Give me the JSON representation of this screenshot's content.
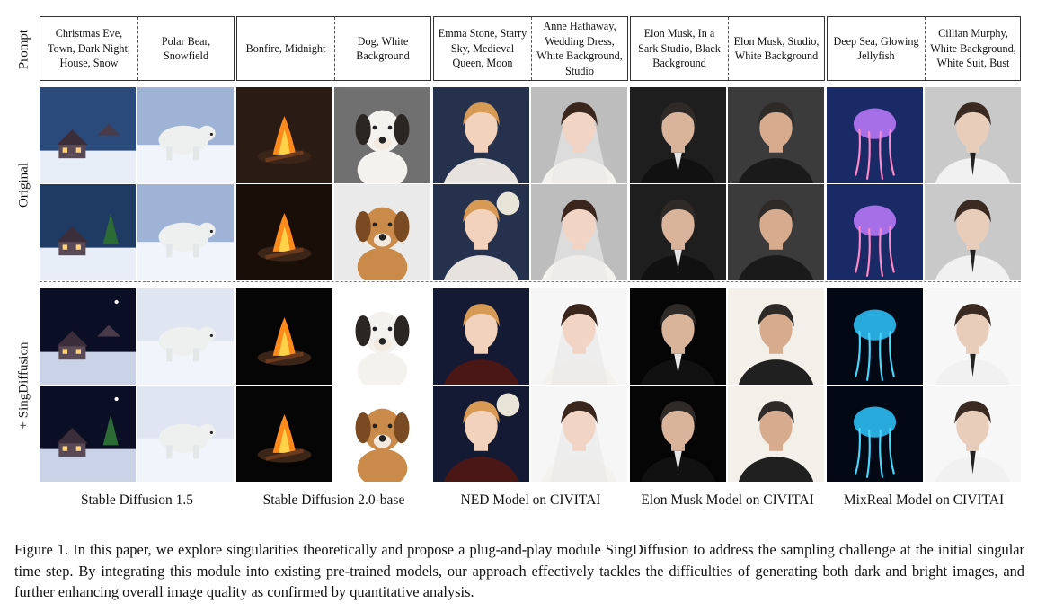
{
  "row_labels": {
    "prompt": "Prompt",
    "original": "Original",
    "sing": "+ SingDiffusion"
  },
  "prompts": [
    "Christmas Eve, Town, Dark Night, House, Snow",
    "Polar Bear, Snowfield",
    "Bonfire, Midnight",
    "Dog, White Background",
    "Emma Stone, Starry Sky, Medieval Queen, Moon",
    "Anne Hathaway, Wedding Dress, White Background, Studio",
    "Elon Musk, In a Sark Studio, Black Background",
    "Elon Musk, Studio, White Background",
    "Deep Sea, Glowing Jellyfish",
    "Cillian Murphy, White Background, White Suit, Bust"
  ],
  "models": [
    "Stable Diffusion  1.5",
    "Stable Diffusion  2.0-base",
    "NED Model on CIVITAI",
    "Elon Musk Model on CIVITAI",
    "MixReal Model on CIVITAI"
  ],
  "caption": "Figure 1. In this paper, we explore singularities theoretically and propose a plug-and-play module SingDiffusion to address the sampling challenge at the initial singular time step. By integrating this module into existing pre-trained models, our approach effectively tackles the difficulties of generating both dark and bright images, and further enhancing overall image quality as confirmed by quantitative analysis.",
  "image_themes": [
    "town-night",
    "polar-bear",
    "bonfire",
    "dog",
    "queen-portrait",
    "bride-portrait",
    "man-dark",
    "man-white",
    "jellyfish",
    "man-white-suit"
  ],
  "colors": {
    "night_sky": "#0c1230",
    "snow": "#e8eef8",
    "fire": "#ff8a1c",
    "jelly_glow": "#4ad6ff"
  }
}
